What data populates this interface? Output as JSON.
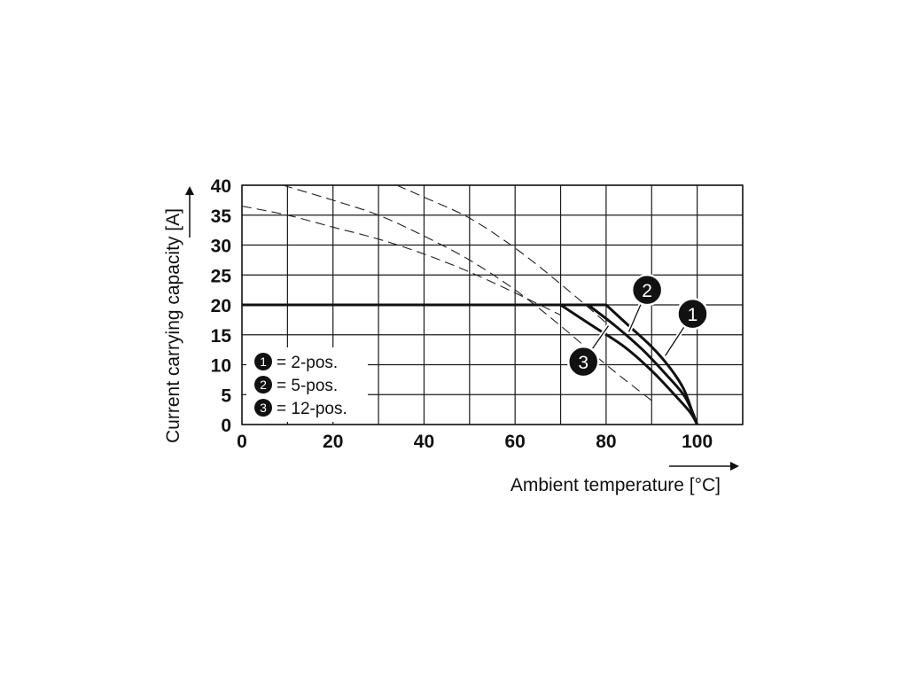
{
  "chart_data": {
    "type": "line",
    "title": "",
    "xlabel": "Ambient temperature [°C]",
    "ylabel": "Current carrying capacity [A]",
    "xlim": [
      0,
      110
    ],
    "ylim": [
      0,
      40
    ],
    "xticks": [
      0,
      20,
      40,
      60,
      80,
      100
    ],
    "yticks": [
      0,
      5,
      10,
      15,
      20,
      25,
      30,
      35,
      40
    ],
    "grid": true,
    "x_grid_step": 10,
    "y_grid_step": 5,
    "legend_placement": "bottom-left",
    "legend": [
      {
        "badge": "1",
        "label": "= 2-pos."
      },
      {
        "badge": "2",
        "label": "= 5-pos."
      },
      {
        "badge": "3",
        "label": "= 12-pos."
      }
    ],
    "series": [
      {
        "badge": "1",
        "style": "solid",
        "points": [
          [
            0,
            20
          ],
          [
            80,
            20
          ],
          [
            85,
            16.5
          ],
          [
            90,
            13
          ],
          [
            94,
            9.5
          ],
          [
            97,
            6
          ],
          [
            99,
            2
          ],
          [
            100,
            0
          ]
        ]
      },
      {
        "badge": "2",
        "style": "solid",
        "points": [
          [
            0,
            20
          ],
          [
            76,
            20
          ],
          [
            82,
            16.5
          ],
          [
            88,
            12.5
          ],
          [
            93,
            8.5
          ],
          [
            97,
            5
          ],
          [
            99,
            2
          ],
          [
            100,
            0
          ]
        ]
      },
      {
        "badge": "3",
        "style": "solid",
        "points": [
          [
            0,
            20
          ],
          [
            70,
            20
          ],
          [
            77,
            16.5
          ],
          [
            84,
            13
          ],
          [
            90,
            9
          ],
          [
            95,
            5
          ],
          [
            98.5,
            2
          ],
          [
            100,
            0
          ]
        ]
      },
      {
        "badge": "",
        "style": "dashed",
        "points": [
          [
            9,
            40
          ],
          [
            20,
            37.5
          ],
          [
            30,
            35
          ],
          [
            40,
            31.5
          ],
          [
            50,
            27.5
          ],
          [
            60,
            22.5
          ],
          [
            70,
            16.5
          ],
          [
            80,
            10
          ],
          [
            90,
            4
          ]
        ]
      },
      {
        "badge": "",
        "style": "dashed",
        "points": [
          [
            0,
            36.5
          ],
          [
            10,
            35
          ],
          [
            20,
            33
          ],
          [
            30,
            31
          ],
          [
            40,
            28.5
          ],
          [
            50,
            25.5
          ],
          [
            60,
            22
          ],
          [
            70,
            18.3
          ]
        ]
      },
      {
        "badge": "",
        "style": "dashed",
        "points": [
          [
            34,
            40
          ],
          [
            40,
            38
          ],
          [
            50,
            34.5
          ],
          [
            60,
            29.5
          ],
          [
            70,
            23.5
          ],
          [
            80,
            17
          ]
        ]
      }
    ],
    "badges": [
      {
        "label": "1",
        "at": [
          99,
          18.5
        ],
        "leader_to": [
          93,
          11.5
        ]
      },
      {
        "label": "2",
        "at": [
          89,
          22.5
        ],
        "leader_to": [
          85,
          15.5
        ]
      },
      {
        "label": "3",
        "at": [
          75,
          10.5
        ],
        "leader_to": [
          80.5,
          16.5
        ]
      }
    ]
  }
}
